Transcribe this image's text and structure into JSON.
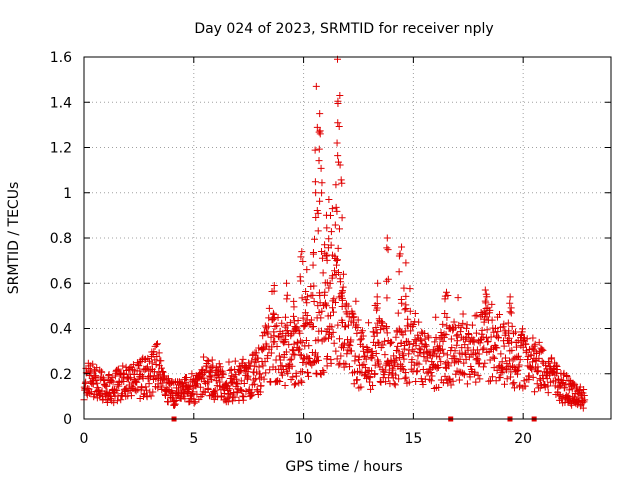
{
  "chart_data": {
    "type": "scatter",
    "title": "Day 024 of 2023, SRMTID for receiver nply",
    "xlabel": "GPS time / hours",
    "ylabel": "SRMTID / TECUs",
    "xlim": [
      0,
      24
    ],
    "ylim": [
      0,
      1.6
    ],
    "xticks": [
      0,
      5,
      10,
      15,
      20
    ],
    "xtick_labels": [
      "0",
      "5",
      "10",
      "15",
      "20"
    ],
    "yticks": [
      0,
      0.2,
      0.4,
      0.6,
      0.8,
      1.0,
      1.2,
      1.4,
      1.6
    ],
    "ytick_labels": [
      "0",
      "0.2",
      "0.4",
      "0.6",
      "0.8",
      "1",
      "1.2",
      "1.4",
      "1.6"
    ],
    "grid": true,
    "series_color": "#e00000",
    "profile": [
      [
        0.0,
        0.17
      ],
      [
        0.5,
        0.16
      ],
      [
        1.0,
        0.13
      ],
      [
        1.5,
        0.15
      ],
      [
        2.0,
        0.16
      ],
      [
        2.5,
        0.18
      ],
      [
        3.0,
        0.19
      ],
      [
        3.3,
        0.24
      ],
      [
        3.6,
        0.14
      ],
      [
        4.0,
        0.11
      ],
      [
        4.5,
        0.12
      ],
      [
        5.0,
        0.13
      ],
      [
        5.5,
        0.19
      ],
      [
        6.0,
        0.17
      ],
      [
        6.5,
        0.15
      ],
      [
        7.0,
        0.15
      ],
      [
        7.5,
        0.18
      ],
      [
        8.0,
        0.22
      ],
      [
        8.5,
        0.32
      ],
      [
        9.0,
        0.3
      ],
      [
        9.5,
        0.28
      ],
      [
        10.0,
        0.31
      ],
      [
        10.5,
        0.4
      ],
      [
        11.0,
        0.38
      ],
      [
        11.5,
        0.5
      ],
      [
        12.0,
        0.35
      ],
      [
        12.5,
        0.27
      ],
      [
        13.0,
        0.25
      ],
      [
        13.5,
        0.32
      ],
      [
        14.0,
        0.24
      ],
      [
        14.5,
        0.28
      ],
      [
        15.0,
        0.34
      ],
      [
        15.5,
        0.27
      ],
      [
        16.0,
        0.25
      ],
      [
        16.5,
        0.28
      ],
      [
        17.0,
        0.3
      ],
      [
        17.5,
        0.28
      ],
      [
        18.0,
        0.32
      ],
      [
        18.5,
        0.33
      ],
      [
        19.0,
        0.29
      ],
      [
        19.5,
        0.26
      ],
      [
        20.0,
        0.27
      ],
      [
        20.5,
        0.24
      ],
      [
        21.0,
        0.22
      ],
      [
        21.5,
        0.16
      ],
      [
        22.0,
        0.13
      ],
      [
        22.5,
        0.1
      ],
      [
        22.8,
        0.09
      ]
    ],
    "peaks": [
      [
        8.6,
        0.59
      ],
      [
        9.2,
        0.6
      ],
      [
        9.6,
        0.52
      ],
      [
        9.9,
        0.74
      ],
      [
        10.1,
        0.66
      ],
      [
        10.5,
        1.0
      ],
      [
        10.6,
        1.47
      ],
      [
        10.7,
        1.35
      ],
      [
        10.8,
        1.26
      ],
      [
        11.0,
        0.77
      ],
      [
        11.1,
        0.97
      ],
      [
        11.3,
        0.93
      ],
      [
        11.5,
        1.22
      ],
      [
        11.6,
        1.59
      ],
      [
        11.7,
        1.43
      ],
      [
        11.8,
        0.64
      ],
      [
        13.3,
        0.6
      ],
      [
        13.8,
        0.8
      ],
      [
        14.4,
        0.76
      ],
      [
        14.6,
        0.69
      ],
      [
        16.5,
        0.56
      ],
      [
        18.3,
        0.57
      ],
      [
        19.4,
        0.54
      ]
    ],
    "zero_markers": [
      4.1,
      16.7,
      19.4,
      20.5
    ],
    "point_count": 1500
  }
}
